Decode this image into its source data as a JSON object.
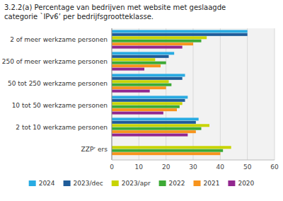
{
  "chart_data": {
    "type": "bar",
    "orientation": "horizontal",
    "title": "3.2.2(a) Percentage van bedrijven met website met geslaagde\ncategorie `IPv6’ per bedrijfsgrootteklasse.",
    "categories": [
      "ZZPʼ ers",
      "2 tot 10 werkzame personen",
      "10 tot 50 werkzame personen",
      "50 tot 250 werkzame personen",
      "250 of meer werkzame personen",
      "2 of meer werkzame personen"
    ],
    "series": [
      {
        "name": "2024",
        "color": "#29ABE2",
        "values": [
          0,
          32,
          28,
          27,
          23,
          50
        ]
      },
      {
        "name": "2023/dec",
        "color": "#1F5C99",
        "values": [
          0,
          31,
          27,
          26,
          21,
          50
        ]
      },
      {
        "name": "2023/apr",
        "color": "#C8D400",
        "values": [
          44,
          36,
          26,
          21,
          16,
          35
        ]
      },
      {
        "name": "2022",
        "color": "#3DAA35",
        "values": [
          41,
          33,
          25,
          22,
          20,
          33
        ]
      },
      {
        "name": "2021",
        "color": "#F7941D",
        "values": [
          40,
          31,
          24,
          20,
          18,
          30
        ]
      },
      {
        "name": "2020",
        "color": "#92278F",
        "values": [
          0,
          28,
          19,
          14,
          12,
          26
        ]
      }
    ],
    "xlim": [
      0,
      60
    ],
    "xticks": [
      0,
      10,
      20,
      30,
      40,
      50,
      60
    ],
    "grid": true,
    "legend": "bottom"
  }
}
